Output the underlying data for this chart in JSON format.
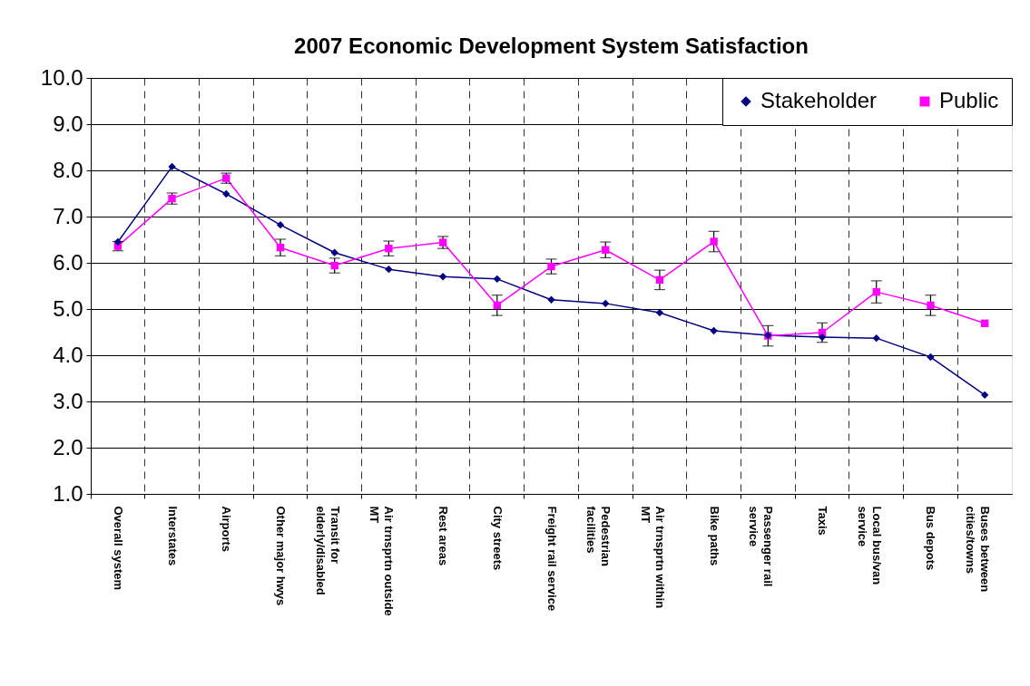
{
  "chart_data": {
    "type": "line",
    "title": "2007 Economic Development System Satisfaction",
    "categories": [
      "Overall system",
      "Interstates",
      "Airports",
      "Other major hwys",
      "Transit for elderly/disabled",
      "Air trnsprtn outside MT",
      "Rest areas",
      "City streets",
      "Freight rail service",
      "Pedestrian facilities",
      "Air trnsprtn within MT",
      "Bike paths",
      "Passenger rail service",
      "Taxis",
      "Local bus/van service",
      "Bus depots",
      "Buses between cities/towns"
    ],
    "series": [
      {
        "name": "Stakeholder",
        "color": "#000080",
        "marker": "diamond",
        "values": [
          6.45,
          8.08,
          7.49,
          6.82,
          6.22,
          5.86,
          5.7,
          5.65,
          5.2,
          5.12,
          4.92,
          4.53,
          4.43,
          4.39,
          4.37,
          3.96,
          3.14
        ]
      },
      {
        "name": "Public",
        "color": "#ff00ff",
        "marker": "square",
        "values": [
          6.36,
          7.39,
          7.83,
          6.33,
          5.94,
          6.31,
          6.44,
          5.08,
          5.92,
          6.28,
          5.63,
          6.46,
          4.42,
          4.49,
          5.37,
          5.08,
          4.69
        ],
        "errors": [
          0.1,
          0.12,
          0.11,
          0.18,
          0.16,
          0.16,
          0.13,
          0.22,
          0.16,
          0.17,
          0.21,
          0.22,
          0.22,
          0.21,
          0.24,
          0.22,
          null
        ]
      }
    ],
    "ylim": [
      1,
      10
    ],
    "yticks": [
      {
        "value": 1,
        "label": "1.0"
      },
      {
        "value": 2,
        "label": "2.0"
      },
      {
        "value": 3,
        "label": "3.0"
      },
      {
        "value": 4,
        "label": "4.0"
      },
      {
        "value": 5,
        "label": "5.0"
      },
      {
        "value": 6,
        "label": "6.0"
      },
      {
        "value": 7,
        "label": "7.0"
      },
      {
        "value": 8,
        "label": "8.0"
      },
      {
        "value": 9,
        "label": "9.0"
      },
      {
        "value": 10,
        "label": "10.0"
      }
    ],
    "grid": true,
    "legend": "top right",
    "line_style": "solid"
  }
}
